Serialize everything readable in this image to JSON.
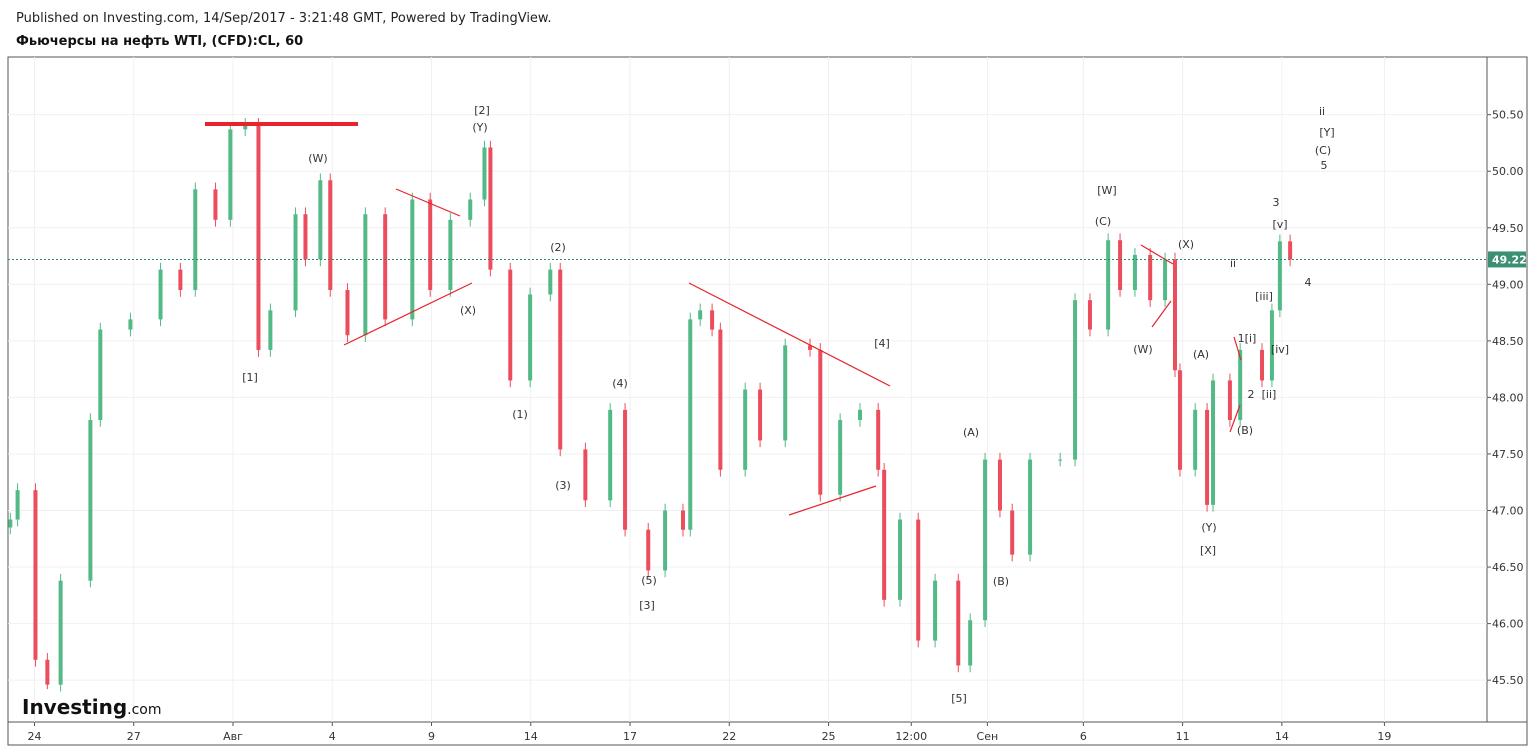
{
  "header": {
    "published": "Published on Investing.com, 14/Sep/2017 - 3:21:48 GMT, Powered by TradingView.",
    "logo": "Investing",
    "logo_suffix": ".com"
  },
  "chart_data": {
    "type": "candlestick",
    "title": "Фьючерсы на нефть WTI, (CFD):CL, 60",
    "up_color": "#53b987",
    "down_color": "#eb4d5c",
    "grid": true,
    "xlim": [
      -0.8,
      43.9
    ],
    "ylim": [
      45.13,
      51.01
    ],
    "xticks": [
      {
        "value": 0,
        "label": "24"
      },
      {
        "value": 3,
        "label": "27"
      },
      {
        "value": 6,
        "label": "Авг"
      },
      {
        "value": 9,
        "label": "4"
      },
      {
        "value": 12,
        "label": "9"
      },
      {
        "value": 15,
        "label": "14"
      },
      {
        "value": 18,
        "label": "17"
      },
      {
        "value": 21,
        "label": "22"
      },
      {
        "value": 24,
        "label": "25"
      },
      {
        "value": 26.5,
        "label": "12:00"
      },
      {
        "value": 28.8,
        "label": "Сен"
      },
      {
        "value": 31.7,
        "label": "6"
      },
      {
        "value": 34.7,
        "label": "11"
      },
      {
        "value": 37.7,
        "label": "14"
      },
      {
        "value": 40.8,
        "label": "19"
      }
    ],
    "yticks": [
      {
        "value": 45.5,
        "label": "45.50"
      },
      {
        "value": 46,
        "label": "46.00"
      },
      {
        "value": 46.5,
        "label": "46.50"
      },
      {
        "value": 47,
        "label": "47.00"
      },
      {
        "value": 47.5,
        "label": "47.50"
      },
      {
        "value": 48,
        "label": "48.00"
      },
      {
        "value": 48.5,
        "label": "48.50"
      },
      {
        "value": 49,
        "label": "49.00"
      },
      {
        "value": 49.5,
        "label": "49.50"
      },
      {
        "value": 50,
        "label": "50.00"
      },
      {
        "value": 50.5,
        "label": "50.50"
      }
    ],
    "last_price": {
      "value": 49.22,
      "label": "49.22"
    },
    "x": [
      -0.73,
      -0.51,
      0.03,
      0.39,
      0.79,
      1.69,
      1.99,
      2.9,
      3.81,
      4.41,
      4.86,
      5.47,
      5.92,
      6.37,
      6.77,
      7.13,
      7.89,
      8.19,
      8.64,
      8.94,
      9.46,
      10.0,
      10.6,
      11.42,
      11.96,
      12.57,
      13.17,
      13.6,
      13.78,
      14.38,
      14.98,
      15.59,
      15.89,
      16.65,
      17.4,
      17.85,
      18.55,
      19.06,
      19.6,
      19.82,
      20.12,
      20.48,
      20.73,
      21.48,
      21.93,
      22.69,
      23.44,
      23.75,
      24.35,
      24.95,
      25.5,
      25.68,
      26.16,
      26.71,
      27.22,
      27.92,
      28.28,
      28.73,
      29.18,
      29.55,
      30.09,
      31.0,
      31.45,
      31.9,
      32.45,
      32.81,
      33.26,
      33.72,
      34.17,
      34.47,
      34.62,
      35.08,
      35.44,
      35.62,
      36.13,
      36.44,
      37.1,
      37.4,
      37.64,
      37.95
    ],
    "open": [
      46.85,
      46.92,
      47.18,
      45.68,
      45.46,
      46.38,
      47.8,
      48.6,
      48.69,
      49.13,
      48.95,
      49.84,
      49.57,
      50.37,
      50.41,
      48.42,
      48.77,
      49.62,
      49.22,
      49.92,
      48.95,
      48.55,
      49.62,
      48.69,
      49.75,
      48.95,
      49.57,
      49.75,
      50.21,
      49.13,
      48.15,
      48.91,
      49.13,
      47.54,
      47.09,
      47.89,
      46.83,
      46.47,
      47.0,
      46.83,
      48.69,
      48.77,
      48.6,
      47.36,
      48.07,
      47.62,
      48.46,
      48.42,
      47.14,
      47.8,
      47.89,
      47.36,
      46.21,
      46.92,
      45.85,
      46.38,
      45.63,
      46.03,
      47.45,
      47.0,
      46.61,
      47.45,
      47.45,
      48.86,
      48.6,
      49.39,
      48.95,
      49.26,
      48.86,
      49.22,
      48.24,
      47.36,
      47.89,
      47.05,
      48.15,
      47.8,
      48.42,
      48.15,
      48.77,
      49.38
    ],
    "high": [
      46.98,
      47.24,
      47.24,
      45.74,
      46.44,
      47.86,
      48.66,
      48.75,
      49.19,
      49.19,
      49.9,
      49.9,
      50.43,
      50.47,
      50.47,
      48.83,
      49.68,
      49.68,
      49.98,
      49.98,
      49.01,
      49.68,
      49.68,
      49.81,
      49.81,
      49.63,
      49.81,
      50.27,
      50.27,
      49.19,
      48.97,
      49.19,
      49.19,
      47.6,
      47.95,
      47.95,
      46.89,
      47.06,
      47.06,
      48.75,
      48.83,
      48.83,
      48.66,
      48.13,
      48.13,
      48.52,
      48.52,
      48.48,
      47.86,
      47.95,
      47.95,
      47.42,
      46.98,
      46.98,
      46.44,
      46.44,
      46.09,
      47.51,
      47.51,
      47.06,
      47.51,
      47.51,
      48.92,
      48.92,
      49.45,
      49.45,
      49.32,
      49.32,
      49.28,
      49.28,
      48.3,
      47.95,
      47.95,
      48.21,
      48.21,
      48.48,
      48.48,
      48.83,
      49.44,
      49.44
    ],
    "low": [
      46.79,
      46.86,
      45.62,
      45.42,
      45.4,
      46.32,
      47.74,
      48.54,
      48.63,
      48.89,
      48.89,
      49.51,
      49.51,
      50.31,
      48.36,
      48.36,
      48.71,
      49.16,
      49.16,
      48.89,
      48.49,
      48.49,
      48.63,
      48.63,
      48.89,
      48.89,
      49.51,
      49.69,
      49.07,
      48.09,
      48.09,
      48.85,
      47.48,
      47.03,
      47.03,
      46.77,
      46.41,
      46.41,
      46.77,
      46.77,
      48.63,
      48.54,
      47.3,
      47.3,
      47.56,
      47.56,
      48.36,
      47.08,
      47.08,
      47.74,
      47.3,
      46.15,
      46.15,
      45.79,
      45.79,
      45.57,
      45.57,
      45.97,
      46.94,
      46.55,
      46.55,
      47.39,
      47.39,
      48.54,
      48.54,
      48.89,
      48.89,
      48.8,
      48.8,
      48.18,
      47.3,
      47.3,
      46.99,
      46.99,
      47.74,
      47.74,
      48.09,
      48.09,
      48.71,
      49.16
    ],
    "close": [
      46.92,
      47.18,
      45.68,
      45.46,
      46.38,
      47.8,
      48.6,
      48.69,
      49.13,
      48.95,
      49.84,
      49.57,
      50.37,
      50.41,
      48.42,
      48.77,
      49.62,
      49.22,
      49.92,
      48.95,
      48.55,
      49.62,
      48.69,
      49.75,
      48.95,
      49.57,
      49.75,
      50.21,
      49.13,
      48.15,
      48.91,
      49.13,
      47.54,
      47.09,
      47.89,
      46.83,
      46.47,
      47.0,
      46.83,
      48.69,
      48.77,
      48.6,
      47.36,
      48.07,
      47.62,
      48.46,
      48.42,
      47.14,
      47.8,
      47.89,
      47.36,
      46.21,
      46.92,
      45.85,
      46.38,
      45.63,
      46.03,
      47.45,
      47.0,
      46.61,
      47.45,
      47.45,
      48.86,
      48.6,
      49.39,
      48.95,
      49.26,
      48.86,
      49.22,
      48.24,
      47.36,
      47.89,
      47.05,
      48.15,
      47.8,
      48.42,
      48.15,
      48.77,
      49.38,
      49.22
    ],
    "annotations": [
      "[1]",
      "(W)",
      "[2]",
      "(Y)",
      "(X)",
      "(2)",
      "(1)",
      "(4)",
      "(3)",
      "(5)",
      "[3]",
      "[4]",
      "(A)",
      "(B)",
      "[5]",
      "[W]",
      "(C)",
      "(X)",
      "(W)",
      "(A)",
      "(Y)",
      "[X]",
      "(B)",
      "ii",
      "1[i]",
      "2",
      "[ii]",
      "[iii]",
      "[iv]",
      "[v]",
      "3",
      "4",
      "ii",
      "[Y]",
      "(C)",
      "5"
    ]
  }
}
